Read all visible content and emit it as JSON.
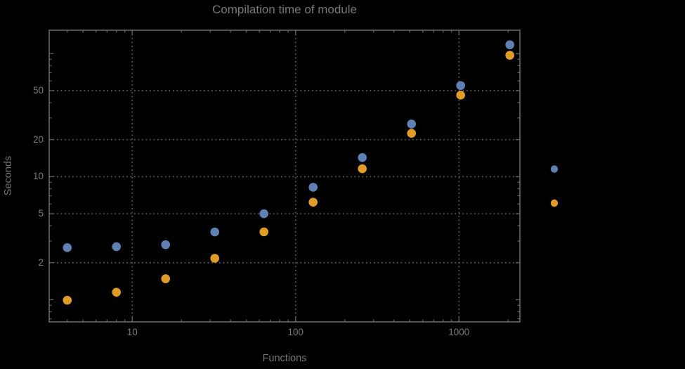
{
  "chart": {
    "title": "Compilation time of module",
    "xlabel": "Functions",
    "ylabel": "Seconds"
  },
  "chart_data": {
    "type": "scatter",
    "title": "Compilation time of module",
    "xlabel": "Functions",
    "ylabel": "Seconds",
    "x_scale": "log",
    "y_scale": "log",
    "grid": "dotted",
    "legend_position": "right-outside",
    "xlim": [
      3.1,
      2360
    ],
    "ylim": [
      0.66,
      155
    ],
    "x": [
      4,
      8,
      16,
      32,
      64,
      128,
      256,
      512,
      1024,
      2048
    ],
    "series": [
      {
        "name": "blue",
        "color": "#5E81B5",
        "values": [
          2.65,
          2.7,
          2.8,
          3.55,
          5.0,
          8.2,
          14.3,
          26.8,
          55,
          118
        ]
      },
      {
        "name": "orange",
        "color": "#E19C24",
        "values": [
          0.99,
          1.15,
          1.48,
          2.17,
          3.56,
          6.2,
          11.6,
          22.5,
          46,
          97
        ]
      }
    ],
    "x_major_ticks": [
      10,
      100,
      1000
    ],
    "x_major_tick_labels": [
      "10",
      "100",
      "1000"
    ],
    "x_minor_ticks": [
      4,
      5,
      6,
      7,
      8,
      9,
      20,
      30,
      40,
      50,
      60,
      70,
      80,
      90,
      200,
      300,
      400,
      500,
      600,
      700,
      800,
      900,
      2000
    ],
    "y_major_ticks": [
      2,
      5,
      10,
      20,
      50
    ],
    "y_major_tick_labels": [
      "2",
      "5",
      "10",
      "20",
      "50"
    ],
    "y_unlabeled_ticks": [
      1,
      100
    ],
    "y_minor_ticks": [
      0.7,
      0.8,
      0.9,
      3,
      4,
      6,
      7,
      8,
      9,
      30,
      40,
      60,
      70,
      80,
      90
    ],
    "legend_markers": [
      {
        "color": "#5E81B5"
      },
      {
        "color": "#E19C24"
      }
    ]
  },
  "colors": {
    "background": "#000000",
    "frame": "#666666",
    "grid": "#5e5e5e",
    "text": "#767676",
    "series_blue": "#5E81B5",
    "series_orange": "#E19C24"
  }
}
